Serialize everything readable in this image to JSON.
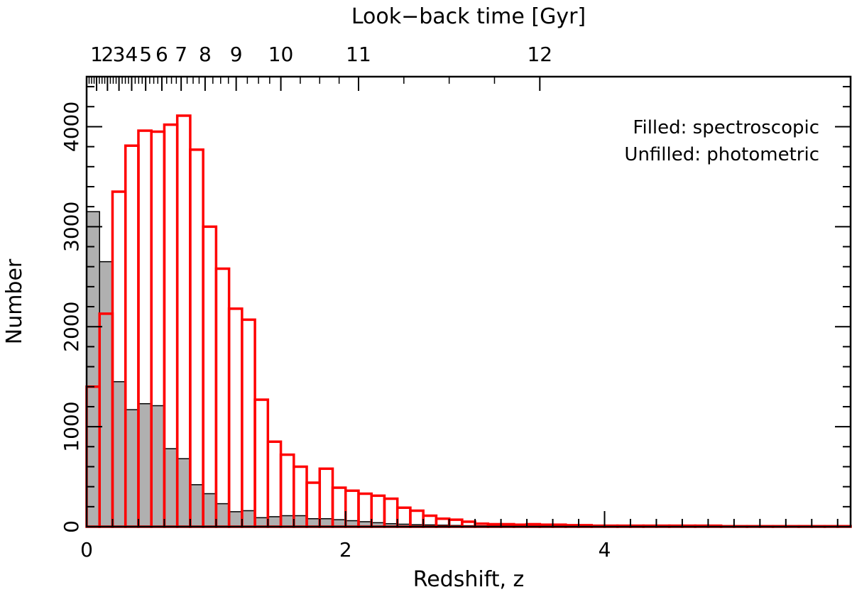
{
  "chart_data": {
    "type": "bar",
    "title": "",
    "xlabel": "Redshift, z",
    "ylabel": "Number",
    "top_axis_label": "Look−back time [Gyr]",
    "xlim": [
      0,
      5.9
    ],
    "ylim": [
      0,
      4500
    ],
    "bin_width": 0.1,
    "bin_start": 0.0,
    "x_ticks": [
      0,
      2,
      4
    ],
    "y_ticks": [
      0,
      1000,
      2000,
      3000,
      4000
    ],
    "top_ticks": [
      {
        "label": "1",
        "z": 0.077
      },
      {
        "label": "2",
        "z": 0.161
      },
      {
        "label": "3",
        "z": 0.25
      },
      {
        "label": "4",
        "z": 0.348
      },
      {
        "label": "5",
        "z": 0.456
      },
      {
        "label": "6",
        "z": 0.581
      },
      {
        "label": "7",
        "z": 0.73
      },
      {
        "label": "8",
        "z": 0.915
      },
      {
        "label": "9",
        "z": 1.155
      },
      {
        "label": "10",
        "z": 1.5
      },
      {
        "label": "11",
        "z": 2.1
      },
      {
        "label": "12",
        "z": 3.5
      }
    ],
    "legend": {
      "position": "top-right",
      "entries": [
        {
          "label": "Filled: spectroscopic",
          "color": "#555555"
        },
        {
          "label": "Unfilled: photometric",
          "color": "#ff0000"
        }
      ]
    },
    "series": [
      {
        "name": "spectroscopic",
        "style": "filled",
        "fill": "#b0b0b0",
        "stroke": "#000000",
        "values": [
          3150,
          2650,
          1450,
          1170,
          1230,
          1210,
          780,
          680,
          420,
          330,
          230,
          150,
          160,
          90,
          100,
          110,
          110,
          80,
          80,
          70,
          60,
          50,
          40,
          30,
          25,
          20,
          18,
          15,
          12,
          10,
          9,
          8,
          7,
          6,
          5,
          5,
          4,
          4,
          3,
          3,
          3,
          2,
          2,
          2,
          2,
          2,
          1,
          1,
          1,
          1,
          1,
          1,
          1,
          1,
          1,
          1,
          1,
          1,
          1
        ]
      },
      {
        "name": "photometric",
        "style": "unfilled",
        "stroke": "#ff0000",
        "values": [
          1400,
          2130,
          3350,
          3810,
          3960,
          3950,
          4020,
          4110,
          3770,
          3000,
          2580,
          2180,
          2070,
          1270,
          850,
          720,
          600,
          440,
          580,
          390,
          360,
          330,
          310,
          280,
          190,
          160,
          110,
          80,
          70,
          50,
          30,
          25,
          25,
          20,
          25,
          20,
          20,
          15,
          15,
          10,
          10,
          10,
          10,
          10,
          10,
          10,
          10,
          10,
          10,
          5,
          5,
          5,
          5,
          5,
          5,
          5,
          5,
          5,
          5
        ]
      }
    ]
  }
}
